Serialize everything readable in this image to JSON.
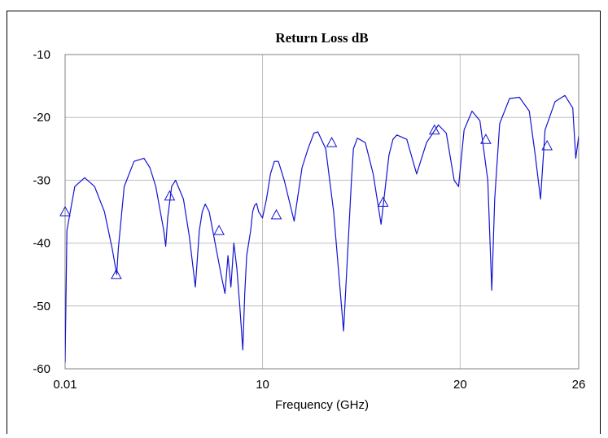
{
  "chart_data": {
    "type": "line",
    "title": "Return Loss dB",
    "xlabel": "Frequency (GHz)",
    "ylabel": "",
    "x_tick_labels": [
      "0.01",
      "10",
      "20",
      "26"
    ],
    "x_ticks": [
      0.01,
      10,
      20,
      26
    ],
    "xlim": [
      0.01,
      26
    ],
    "y_tick_labels": [
      "-10",
      "-20",
      "-30",
      "-40",
      "-50",
      "-60"
    ],
    "y_ticks": [
      -10,
      -20,
      -30,
      -40,
      -50,
      -60
    ],
    "ylim": [
      -60,
      -10
    ],
    "grid": true,
    "legend": "none",
    "line_color": "#1414d2",
    "series": [
      {
        "marker": "triangle",
        "x": [
          0.01,
          0.1,
          0.5,
          1.0,
          1.5,
          2.0,
          2.4,
          2.62,
          2.7,
          3.0,
          3.5,
          4.0,
          4.3,
          4.6,
          5.0,
          5.1,
          5.2,
          5.4,
          5.6,
          6.0,
          6.3,
          6.6,
          6.8,
          6.95,
          7.1,
          7.3,
          7.6,
          7.9,
          8.1,
          8.25,
          8.4,
          8.55,
          8.7,
          8.85,
          9.0,
          9.1,
          9.2,
          9.3,
          9.4,
          9.5,
          9.6,
          9.7,
          9.8,
          10.0,
          10.2,
          10.4,
          10.6,
          10.8,
          11.1,
          11.6,
          12.0,
          12.3,
          12.6,
          12.8,
          13.2,
          13.6,
          14.1,
          14.5,
          14.6,
          14.8,
          15.2,
          15.6,
          16.0,
          16.4,
          16.6,
          16.8,
          17.3,
          17.8,
          18.3,
          18.9,
          19.3,
          19.7,
          19.92,
          20.2,
          20.6,
          21.0,
          21.4,
          21.6,
          21.75,
          22.0,
          22.5,
          23.0,
          23.5,
          23.8,
          24.07,
          24.3,
          24.8,
          25.3,
          25.7,
          25.85,
          26.0
        ],
        "y": [
          -59.0,
          -38.0,
          -31.0,
          -29.6,
          -31.0,
          -35.0,
          -41.0,
          -45.0,
          -41.0,
          -31.0,
          -27.0,
          -26.5,
          -28.0,
          -31.0,
          -38.0,
          -40.5,
          -36.0,
          -31.0,
          -30.0,
          -33.0,
          -39.0,
          -47.0,
          -38.0,
          -35.0,
          -33.8,
          -35.0,
          -40.0,
          -45.0,
          -48.0,
          -42.0,
          -47.0,
          -40.0,
          -44.0,
          -50.0,
          -57.0,
          -48.0,
          -42.0,
          -40.0,
          -38.0,
          -35.0,
          -34.0,
          -33.7,
          -35.0,
          -36.0,
          -33.0,
          -29.0,
          -27.0,
          -27.0,
          -30.0,
          -36.5,
          -28.0,
          -25.0,
          -22.5,
          -22.3,
          -25.0,
          -35.0,
          -54.0,
          -30.0,
          -25.0,
          -23.3,
          -24.0,
          -29.0,
          -37.0,
          -26.0,
          -23.5,
          -22.8,
          -23.5,
          -29.0,
          -24.0,
          -21.2,
          -22.5,
          -30.0,
          -31.0,
          -22.0,
          -19.0,
          -20.5,
          -30.0,
          -47.5,
          -33.0,
          -21.0,
          -17.0,
          -16.8,
          -19.0,
          -26.0,
          -33.0,
          -22.0,
          -17.5,
          -16.5,
          -18.5,
          -26.5,
          -23.0
        ]
      }
    ],
    "markers": [
      {
        "x": 0.01,
        "y": -35
      },
      {
        "x": 2.6,
        "y": -45
      },
      {
        "x": 5.3,
        "y": -32.5
      },
      {
        "x": 7.8,
        "y": -38
      },
      {
        "x": 10.7,
        "y": -35.5
      },
      {
        "x": 13.5,
        "y": -24
      },
      {
        "x": 16.1,
        "y": -33.5
      },
      {
        "x": 18.7,
        "y": -22
      },
      {
        "x": 21.3,
        "y": -23.5
      },
      {
        "x": 24.4,
        "y": -24.5
      }
    ]
  }
}
